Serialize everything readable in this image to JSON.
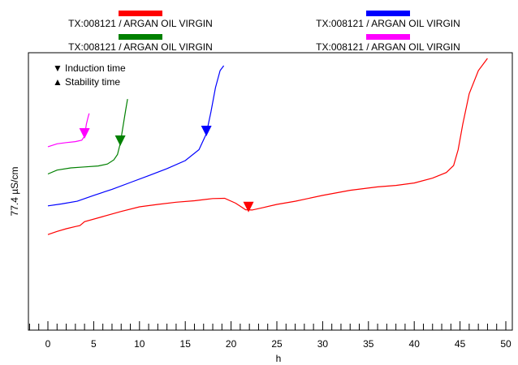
{
  "legend": [
    {
      "label": "TX:008121  / ARGAN OIL VIRGIN",
      "color": "#ff0000"
    },
    {
      "label": "TX:008121  / ARGAN OIL VIRGIN",
      "color": "#0000ff"
    },
    {
      "label": "TX:008121  / ARGAN OIL VIRGIN",
      "color": "#008000"
    },
    {
      "label": "TX:008121  / ARGAN OIL VIRGIN",
      "color": "#ff00ff"
    }
  ],
  "markers_legend": {
    "induction": {
      "symbol": "▼",
      "label": "Induction time"
    },
    "stability": {
      "symbol": "▲",
      "label": "Stability time"
    }
  },
  "chart_data": {
    "type": "line",
    "title": "",
    "xlabel": "h",
    "ylabel": "77.4 µS/cm",
    "xlim": [
      -2.5,
      50.5
    ],
    "xticks": [
      0,
      5,
      10,
      15,
      20,
      25,
      30,
      35,
      40,
      45,
      50
    ],
    "grid": false,
    "legend_position": "top",
    "series": [
      {
        "name": "TX:008121  / ARGAN OIL VIRGIN",
        "color": "#ff0000",
        "points": [
          [
            0,
            0.276
          ],
          [
            1,
            0.289
          ],
          [
            2,
            0.3
          ],
          [
            3,
            0.309
          ],
          [
            3.5,
            0.313
          ],
          [
            4,
            0.329
          ],
          [
            6,
            0.35
          ],
          [
            8,
            0.371
          ],
          [
            10,
            0.39
          ],
          [
            12,
            0.4
          ],
          [
            14,
            0.409
          ],
          [
            16,
            0.415
          ],
          [
            18,
            0.424
          ],
          [
            19.3,
            0.425
          ],
          [
            20.5,
            0.405
          ],
          [
            21.6,
            0.378
          ],
          [
            22.3,
            0.377
          ],
          [
            23.5,
            0.387
          ],
          [
            25,
            0.4
          ],
          [
            27,
            0.413
          ],
          [
            30,
            0.437
          ],
          [
            33,
            0.458
          ],
          [
            36,
            0.472
          ],
          [
            38,
            0.478
          ],
          [
            40,
            0.488
          ],
          [
            42,
            0.508
          ],
          [
            43.5,
            0.531
          ],
          [
            44.3,
            0.56
          ],
          [
            44.8,
            0.625
          ],
          [
            45.3,
            0.73
          ],
          [
            46,
            0.855
          ],
          [
            47,
            0.95
          ],
          [
            48,
            1.0
          ]
        ],
        "induction_time": 21.9
      },
      {
        "name": "TX:008121  / ARGAN OIL VIRGIN",
        "color": "#0000ff",
        "points": [
          [
            0,
            0.394
          ],
          [
            1.5,
            0.402
          ],
          [
            3.2,
            0.413
          ],
          [
            5,
            0.437
          ],
          [
            7,
            0.462
          ],
          [
            9,
            0.49
          ],
          [
            11,
            0.518
          ],
          [
            13,
            0.547
          ],
          [
            15,
            0.58
          ],
          [
            16.5,
            0.625
          ],
          [
            17.3,
            0.69
          ],
          [
            17.8,
            0.78
          ],
          [
            18.3,
            0.88
          ],
          [
            18.8,
            0.95
          ],
          [
            19.2,
            0.97
          ]
        ],
        "induction_time": 17.3
      },
      {
        "name": "TX:008121  / ARGAN OIL VIRGIN",
        "color": "#008000",
        "points": [
          [
            0,
            0.525
          ],
          [
            1,
            0.541
          ],
          [
            2.5,
            0.55
          ],
          [
            4,
            0.554
          ],
          [
            5.5,
            0.558
          ],
          [
            6.5,
            0.566
          ],
          [
            7.2,
            0.583
          ],
          [
            7.6,
            0.605
          ],
          [
            7.9,
            0.65
          ],
          [
            8.2,
            0.72
          ],
          [
            8.5,
            0.79
          ],
          [
            8.7,
            0.833
          ]
        ],
        "induction_time": 7.9
      },
      {
        "name": "TX:008121  / ARGAN OIL VIRGIN",
        "color": "#ff00ff",
        "points": [
          [
            0,
            0.637
          ],
          [
            1,
            0.649
          ],
          [
            2,
            0.654
          ],
          [
            3,
            0.658
          ],
          [
            3.7,
            0.664
          ],
          [
            4.0,
            0.68
          ],
          [
            4.2,
            0.73
          ],
          [
            4.4,
            0.76
          ],
          [
            4.5,
            0.774
          ]
        ],
        "induction_time": 4.0
      }
    ]
  }
}
